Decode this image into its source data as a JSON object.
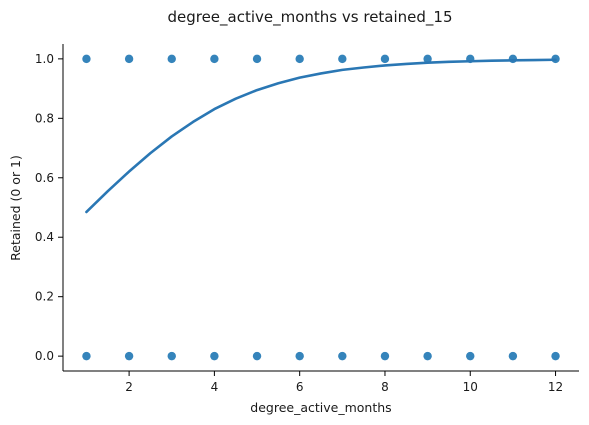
{
  "chart_data": {
    "type": "scatter",
    "title": "degree_active_months vs retained_15",
    "xlabel": "degree_active_months",
    "ylabel": "Retained (0 or 1)",
    "xlim": [
      0.45,
      12.55
    ],
    "ylim": [
      -0.05,
      1.05
    ],
    "x_ticks": [
      2,
      4,
      6,
      8,
      10,
      12
    ],
    "y_ticks": [
      0.0,
      0.2,
      0.4,
      0.6,
      0.8,
      1.0
    ],
    "x_tick_labels": [
      "2",
      "4",
      "6",
      "8",
      "10",
      "12"
    ],
    "y_tick_labels": [
      "0.0",
      "0.2",
      "0.4",
      "0.6",
      "0.8",
      "1.0"
    ],
    "grid": false,
    "colors": {
      "series": "#2a77b4",
      "points": "#1f77b4"
    },
    "points": {
      "x": [
        1,
        2,
        3,
        4,
        5,
        6,
        7,
        8,
        9,
        10,
        11,
        12,
        1,
        2,
        3,
        4,
        5,
        6,
        7,
        8,
        9,
        10,
        11,
        12
      ],
      "y": [
        1,
        1,
        1,
        1,
        1,
        1,
        1,
        1,
        1,
        1,
        1,
        1,
        0,
        0,
        0,
        0,
        0,
        0,
        0,
        0,
        0,
        0,
        0,
        0
      ]
    },
    "fit_curve": {
      "x": [
        1,
        1.5,
        2,
        2.5,
        3,
        3.5,
        4,
        4.5,
        5,
        5.5,
        6,
        6.5,
        7,
        7.5,
        8,
        8.5,
        9,
        9.5,
        10,
        10.5,
        11,
        11.5,
        12
      ],
      "y": [
        0.485,
        0.555,
        0.621,
        0.683,
        0.739,
        0.788,
        0.831,
        0.866,
        0.895,
        0.918,
        0.937,
        0.951,
        0.963,
        0.971,
        0.978,
        0.983,
        0.987,
        0.99,
        0.992,
        0.994,
        0.995,
        0.996,
        0.997
      ]
    }
  }
}
